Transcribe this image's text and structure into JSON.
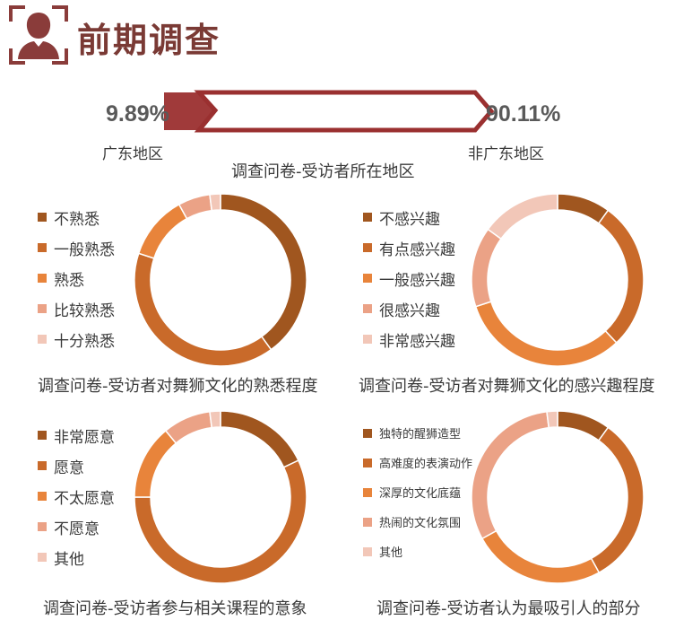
{
  "header": {
    "title": "前期调查",
    "icon": "person-frame-icon"
  },
  "region": {
    "left_pct": "9.89%",
    "right_pct": "90.11%",
    "left_label": "广东地区",
    "right_label": "非广东地区",
    "caption": "调查问卷-受访者所在地区"
  },
  "colors": [
    "#a0561f",
    "#c96a2a",
    "#e8843b",
    "#eba286",
    "#f2c7b8"
  ],
  "chart_data": [
    {
      "type": "pie",
      "title": "调查问卷-受访者对舞狮文化的熟悉程度",
      "categories": [
        "不熟悉",
        "一般熟悉",
        "熟悉",
        "比较熟悉",
        "十分熟悉"
      ],
      "values": [
        40,
        40,
        12,
        6,
        2
      ],
      "colors": [
        "#a0561f",
        "#c96a2a",
        "#e8843b",
        "#eba286",
        "#f2c7b8"
      ]
    },
    {
      "type": "pie",
      "title": "调查问卷-受访者对舞狮文化的感兴趣程度",
      "categories": [
        "不感兴趣",
        "有点感兴趣",
        "一般感兴趣",
        "很感兴趣",
        "非常感兴趣"
      ],
      "values": [
        10,
        28,
        32,
        15,
        15
      ],
      "colors": [
        "#a0561f",
        "#c96a2a",
        "#e8843b",
        "#eba286",
        "#f2c7b8"
      ]
    },
    {
      "type": "pie",
      "title": "调查问卷-受访者参与相关课程的意象",
      "categories": [
        "非常愿意",
        "愿意",
        "不太愿意",
        "不愿意",
        "其他"
      ],
      "values": [
        18,
        57,
        14,
        9,
        2
      ],
      "colors": [
        "#a0561f",
        "#c96a2a",
        "#e8843b",
        "#eba286",
        "#f2c7b8"
      ]
    },
    {
      "type": "pie",
      "title": "调查问卷-受访者认为最吸引人的部分",
      "categories": [
        "独特的醒狮造型",
        "高难度的表演动作",
        "深厚的文化底蕴",
        "热闹的文化氛围",
        "其他"
      ],
      "values": [
        10,
        32,
        25,
        31,
        2
      ],
      "colors": [
        "#a0561f",
        "#c96a2a",
        "#e8843b",
        "#eba286",
        "#f2c7b8"
      ]
    }
  ]
}
